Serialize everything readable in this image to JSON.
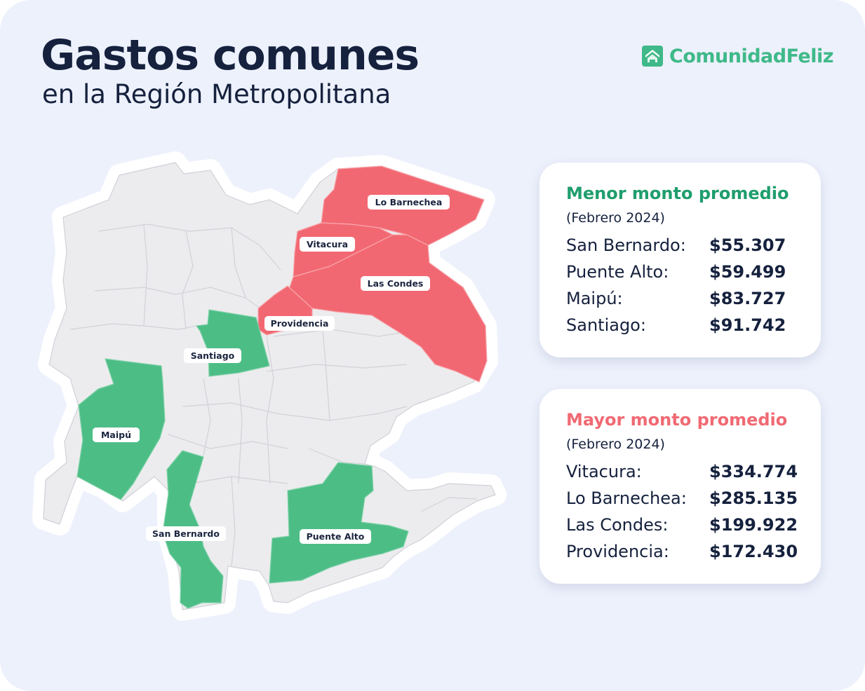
{
  "header": {
    "title": "Gastos comunes",
    "subtitle": "en la Región Metropolitana"
  },
  "brand": {
    "name": "ComunidadFeliz",
    "icon": "house-logo-icon",
    "color": "#3fb989"
  },
  "colors": {
    "low": "#4dbd86",
    "high": "#f26872",
    "neutral": "#ececee",
    "background": "#edf1fc"
  },
  "map": {
    "labels": {
      "lo_barnechea": "Lo Barnechea",
      "vitacura": "Vitacura",
      "las_condes": "Las Condes",
      "providencia": "Providencia",
      "santiago": "Santiago",
      "maipu": "Maipú",
      "san_bernardo": "San Bernardo",
      "puente_alto": "Puente Alto"
    }
  },
  "panels": {
    "low": {
      "title": "Menor monto promedio",
      "period": "(Febrero 2024)",
      "rows": [
        {
          "name": "San Bernardo:",
          "value": "$55.307"
        },
        {
          "name": "Puente Alto:",
          "value": "$59.499"
        },
        {
          "name": "Maipú:",
          "value": "$83.727"
        },
        {
          "name": "Santiago:",
          "value": "$91.742"
        }
      ]
    },
    "high": {
      "title": "Mayor monto promedio",
      "period": "(Febrero 2024)",
      "rows": [
        {
          "name": "Vitacura:",
          "value": "$334.774"
        },
        {
          "name": "Lo Barnechea:",
          "value": "$285.135"
        },
        {
          "name": "Las Condes:",
          "value": "$199.922"
        },
        {
          "name": "Providencia:",
          "value": "$172.430"
        }
      ]
    }
  }
}
